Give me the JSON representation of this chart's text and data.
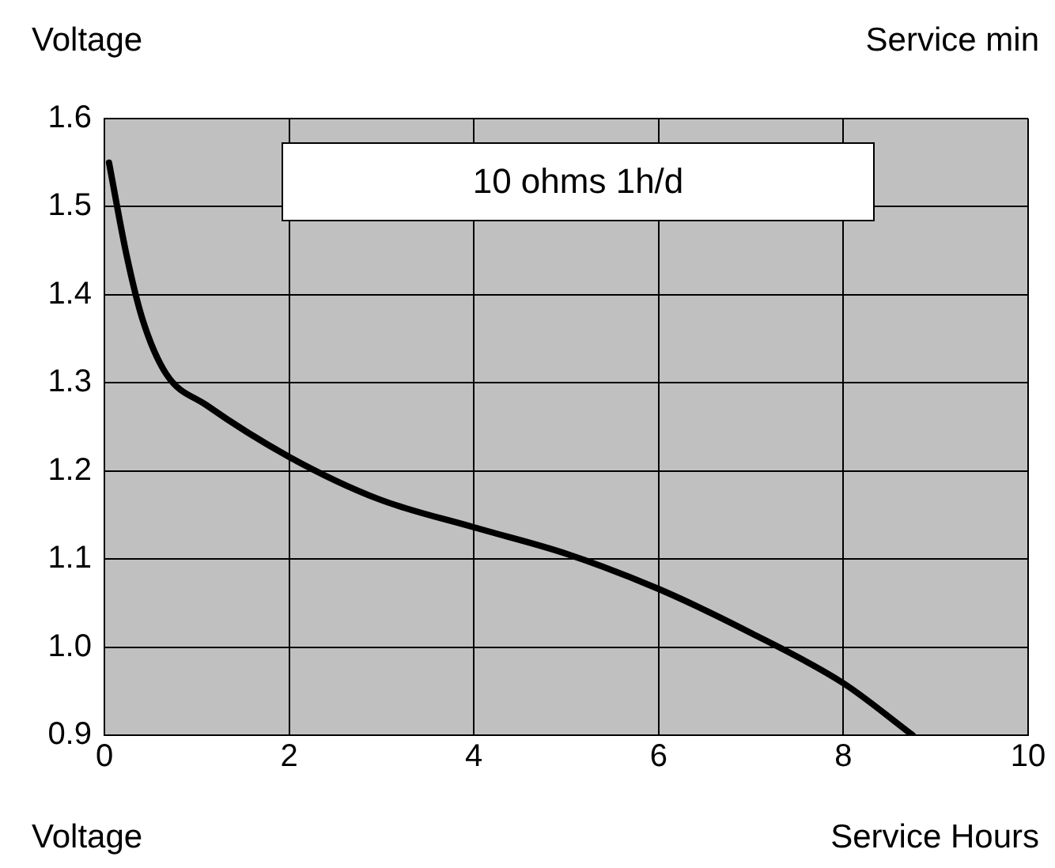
{
  "chart_data": {
    "type": "line",
    "ylabel": "Voltage",
    "xlabel": "Service Hours",
    "annotations": [
      "Service min",
      "Voltage",
      "10 ohms 1h/d"
    ],
    "x": [
      0.05,
      0.24,
      0.41,
      0.67,
      1.1,
      2,
      2.97,
      4,
      5,
      6,
      7,
      8,
      8.75
    ],
    "series": [
      {
        "color": "#000000",
        "values": [
          1.55,
          1.445,
          1.373,
          1.31,
          1.275,
          1.216,
          1.168,
          1.136,
          1.106,
          1.066,
          1.016,
          0.959,
          0.9
        ]
      }
    ],
    "xlim": [
      0,
      10
    ],
    "xticks": [
      0,
      2,
      4,
      6,
      8,
      10
    ],
    "ylim": [
      0.9,
      1.6
    ],
    "yticks": [
      0.9,
      {
        "value": 1,
        "label": "1.0"
      },
      1.1,
      1.2,
      1.3,
      1.4,
      1.5,
      1.6
    ],
    "grid": true,
    "legend": false,
    "marker": "none",
    "line_style": "solid"
  }
}
